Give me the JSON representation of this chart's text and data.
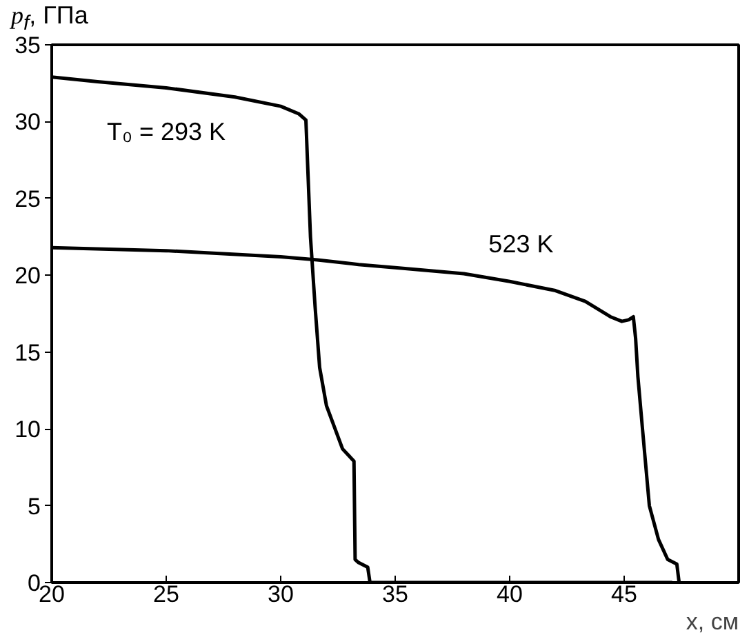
{
  "chart_data": {
    "type": "line",
    "xlabel": "x, см",
    "ylabel": "p$_{f}$, ГПа",
    "xlim": [
      20,
      50
    ],
    "xticks": [
      20,
      25,
      30,
      35,
      40,
      45
    ],
    "ylim": [
      0,
      35
    ],
    "yticks": [
      0,
      5,
      10,
      15,
      20,
      25,
      30,
      35
    ],
    "grid": false,
    "series": [
      {
        "name": "T₀ = 293 K",
        "color": "#000000",
        "x": [
          20,
          22,
          25,
          28,
          30,
          30.8,
          31.1,
          31.3,
          31.5,
          31.7,
          32,
          32.3,
          32.7,
          33.2,
          33.25,
          33.4,
          33.8,
          33.9,
          47.1
        ],
        "values": [
          32.9,
          32.6,
          32.2,
          31.6,
          31.0,
          30.5,
          30.1,
          22.5,
          18,
          14,
          11.5,
          10.3,
          8.7,
          7.9,
          1.5,
          1.3,
          1.0,
          0,
          0
        ]
      },
      {
        "name": "523 K",
        "color": "#000000",
        "x": [
          20,
          25,
          30,
          31.6,
          33.4,
          35,
          38,
          40,
          42,
          43.3,
          44.4,
          44.9,
          45.2,
          45.4,
          45.5,
          45.6,
          45.8,
          46.1,
          46.5,
          46.9,
          47.3,
          47.4
        ],
        "values": [
          21.8,
          21.6,
          21.2,
          21.0,
          20.7,
          20.5,
          20.1,
          19.6,
          19.0,
          18.3,
          17.3,
          17.0,
          17.1,
          17.3,
          15.9,
          13.4,
          10,
          5,
          2.8,
          1.5,
          1.2,
          0
        ]
      }
    ]
  }
}
